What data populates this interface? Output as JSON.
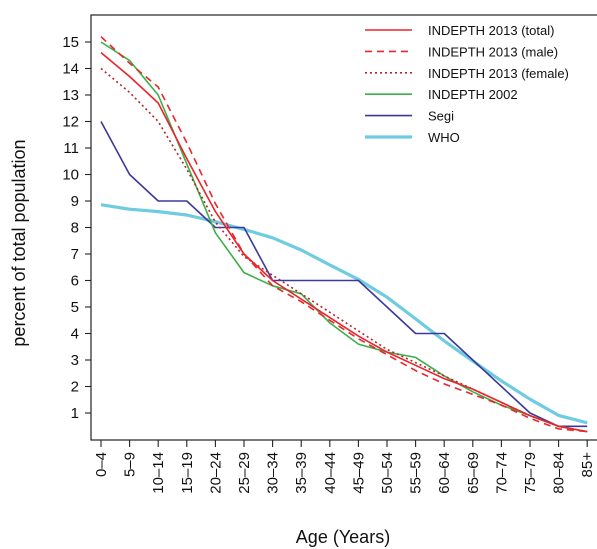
{
  "chart_data": {
    "type": "line",
    "title": "",
    "xlabel": "Age (Years)",
    "ylabel": "percent of total population",
    "categories": [
      "0–4",
      "5–9",
      "10–14",
      "15–19",
      "20–24",
      "25–29",
      "30–34",
      "35–39",
      "40–44",
      "45–49",
      "50–54",
      "55–59",
      "60–64",
      "65–69",
      "70–74",
      "75–79",
      "80–84",
      "85+"
    ],
    "yticks": [
      1,
      2,
      3,
      4,
      5,
      6,
      7,
      8,
      9,
      10,
      11,
      12,
      13,
      14,
      15
    ],
    "ylim": [
      0,
      16
    ],
    "legend_position": "top-right",
    "grid": false,
    "series": [
      {
        "name": "INDEPTH 2013 (total)",
        "color": "#e8262b",
        "dash": "solid",
        "values": [
          14.6,
          13.7,
          12.7,
          10.6,
          8.6,
          7.0,
          6.0,
          5.3,
          4.6,
          3.9,
          3.3,
          2.8,
          2.3,
          1.9,
          1.4,
          0.9,
          0.5,
          0.3
        ]
      },
      {
        "name": "INDEPTH 2013 (male)",
        "color": "#e8262b",
        "dash": "dashed",
        "values": [
          15.2,
          14.2,
          13.3,
          11.2,
          8.9,
          7.0,
          5.8,
          5.2,
          4.5,
          3.8,
          3.2,
          2.6,
          2.1,
          1.7,
          1.3,
          0.8,
          0.4,
          0.3
        ]
      },
      {
        "name": "INDEPTH 2013 (female)",
        "color": "#b5242d",
        "dash": "dotted",
        "values": [
          14.0,
          13.1,
          12.0,
          10.2,
          8.2,
          6.9,
          6.2,
          5.5,
          4.8,
          4.1,
          3.4,
          2.9,
          2.4,
          1.9,
          1.4,
          0.9,
          0.5,
          0.3
        ]
      },
      {
        "name": "INDEPTH 2002",
        "color": "#3bb04a",
        "dash": "solid",
        "values": [
          15.0,
          14.3,
          13.0,
          10.4,
          7.8,
          6.3,
          5.8,
          5.5,
          4.4,
          3.6,
          3.3,
          3.1,
          2.4,
          1.8,
          1.3,
          0.9,
          0.5,
          0.3
        ]
      },
      {
        "name": "Segi",
        "color": "#3b3a9a",
        "dash": "solid",
        "values": [
          12.0,
          10.0,
          9.0,
          9.0,
          8.0,
          8.0,
          6.0,
          6.0,
          6.0,
          6.0,
          5.0,
          4.0,
          4.0,
          3.0,
          2.0,
          1.0,
          0.5,
          0.5
        ]
      },
      {
        "name": "WHO",
        "color": "#6fcbe0",
        "dash": "solid",
        "values": [
          8.86,
          8.69,
          8.6,
          8.47,
          8.22,
          7.93,
          7.61,
          7.15,
          6.59,
          6.04,
          5.37,
          4.55,
          3.72,
          2.96,
          2.21,
          1.52,
          0.91,
          0.63
        ]
      }
    ]
  }
}
